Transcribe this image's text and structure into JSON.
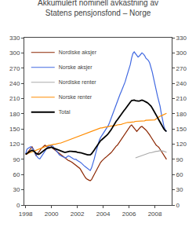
{
  "chart_data": {
    "type": "line",
    "title": "Akkumulert nominell avkastning av",
    "subtitle": "Statens pensjonsfond – Norge",
    "xlim": [
      1997.9,
      2009.3
    ],
    "xticks": [
      1998,
      2000,
      2002,
      2004,
      2006,
      2008
    ],
    "ylim": [
      0,
      330
    ],
    "yticks": [
      0,
      30,
      60,
      90,
      120,
      150,
      180,
      210,
      240,
      270,
      300,
      330
    ],
    "y2lim": [
      0,
      330
    ],
    "y2ticks": [
      0,
      30,
      60,
      90,
      120,
      150,
      180,
      210,
      240,
      270,
      300,
      330
    ],
    "grid": false,
    "legend": "upper left",
    "series": [
      {
        "name": "Nordiske aksjer",
        "color": "#8B2500",
        "x": [
          1998.0,
          1998.1,
          1998.2,
          1998.3,
          1998.4,
          1998.5,
          1998.6,
          1998.7,
          1998.8,
          1998.9,
          1999.0,
          1999.1,
          1999.2,
          1999.3,
          1999.4,
          1999.5,
          1999.6,
          1999.7,
          1999.8,
          1999.9,
          2000.0,
          2000.1,
          2000.2,
          2000.3,
          2000.4,
          2000.5,
          2000.6,
          2000.7,
          2000.8,
          2000.9,
          2001.0,
          2001.1,
          2001.2,
          2001.3,
          2001.4,
          2001.5,
          2001.6,
          2001.7,
          2001.8,
          2001.9,
          2002.0,
          2002.1,
          2002.2,
          2002.3,
          2002.4,
          2002.5,
          2002.6,
          2002.7,
          2002.8,
          2002.9,
          2003.0,
          2003.1,
          2003.2,
          2003.3,
          2003.4,
          2003.5,
          2003.6,
          2003.7,
          2003.8,
          2003.9,
          2004.0,
          2004.1,
          2004.2,
          2004.3,
          2004.4,
          2004.5,
          2004.6,
          2004.7,
          2004.8,
          2004.9,
          2005.0,
          2005.1,
          2005.2,
          2005.3,
          2005.4,
          2005.5,
          2005.6,
          2005.7,
          2005.8,
          2005.9,
          2006.0,
          2006.1,
          2006.2,
          2006.3,
          2006.4,
          2006.5,
          2006.6,
          2006.7,
          2006.8,
          2006.9,
          2007.0,
          2007.1,
          2007.2,
          2007.3,
          2007.4,
          2007.5,
          2007.6,
          2007.7,
          2007.8,
          2007.9,
          2008.0,
          2008.1,
          2008.2,
          2008.3,
          2008.4,
          2008.5,
          2008.6,
          2008.7,
          2008.8,
          2008.9
        ],
        "values": [
          100,
          100,
          105,
          108,
          112,
          115,
          110,
          105,
          98,
          100,
          103,
          107,
          111,
          114,
          116,
          118,
          116,
          114,
          112,
          113,
          115,
          112,
          110,
          108,
          106,
          104,
          102,
          100,
          97,
          95,
          94,
          92,
          90,
          88,
          87,
          86,
          84,
          82,
          80,
          78,
          76,
          74,
          72,
          68,
          63,
          58,
          55,
          52,
          50,
          49,
          48,
          50,
          55,
          60,
          65,
          70,
          75,
          80,
          84,
          87,
          90,
          92,
          94,
          96,
          98,
          100,
          103,
          106,
          110,
          113,
          116,
          118,
          122,
          126,
          130,
          134,
          138,
          142,
          146,
          150,
          153,
          156,
          158,
          155,
          152,
          148,
          145,
          148,
          151,
          154,
          155,
          153,
          150,
          148,
          145,
          142,
          138,
          134,
          130,
          125,
          120,
          118,
          116,
          114,
          110,
          106,
          102,
          98,
          94,
          90
        ]
      },
      {
        "name": "Norske aksjer",
        "color": "#4169E1",
        "x": [
          1998.0,
          1998.1,
          1998.2,
          1998.3,
          1998.4,
          1998.5,
          1998.6,
          1998.7,
          1998.8,
          1998.9,
          1999.0,
          1999.1,
          1999.2,
          1999.3,
          1999.4,
          1999.5,
          1999.6,
          1999.7,
          1999.8,
          1999.9,
          2000.0,
          2000.1,
          2000.2,
          2000.3,
          2000.4,
          2000.5,
          2000.6,
          2000.7,
          2000.8,
          2000.9,
          2001.0,
          2001.1,
          2001.2,
          2001.3,
          2001.4,
          2001.5,
          2001.6,
          2001.7,
          2001.8,
          2001.9,
          2002.0,
          2002.1,
          2002.2,
          2002.3,
          2002.4,
          2002.5,
          2002.6,
          2002.7,
          2002.8,
          2002.9,
          2003.0,
          2003.1,
          2003.2,
          2003.3,
          2003.4,
          2003.5,
          2003.6,
          2003.7,
          2003.8,
          2003.9,
          2004.0,
          2004.1,
          2004.2,
          2004.3,
          2004.4,
          2004.5,
          2004.6,
          2004.7,
          2004.8,
          2004.9,
          2005.0,
          2005.1,
          2005.2,
          2005.3,
          2005.4,
          2005.5,
          2005.6,
          2005.7,
          2005.8,
          2005.9,
          2006.0,
          2006.1,
          2006.2,
          2006.3,
          2006.4,
          2006.5,
          2006.6,
          2006.7,
          2006.8,
          2006.9,
          2007.0,
          2007.1,
          2007.2,
          2007.3,
          2007.4,
          2007.5,
          2007.6,
          2007.7,
          2007.8,
          2007.9,
          2008.0,
          2008.1,
          2008.2,
          2008.3,
          2008.4,
          2008.5,
          2008.6,
          2008.7,
          2008.8,
          2008.9
        ],
        "values": [
          100,
          110,
          112,
          114,
          115,
          113,
          110,
          105,
          98,
          95,
          92,
          91,
          95,
          100,
          104,
          108,
          111,
          114,
          116,
          117,
          118,
          116,
          113,
          110,
          107,
          103,
          99,
          97,
          96,
          95,
          94,
          93,
          95,
          97,
          96,
          94,
          92,
          91,
          90,
          90,
          88,
          87,
          85,
          83,
          80,
          78,
          76,
          74,
          72,
          70,
          68,
          73,
          80,
          90,
          100,
          110,
          120,
          128,
          133,
          137,
          140,
          143,
          148,
          152,
          157,
          163,
          170,
          177,
          185,
          193,
          200,
          205,
          212,
          218,
          224,
          230,
          237,
          243,
          252,
          260,
          268,
          277,
          290,
          299,
          302,
          298,
          295,
          292,
          294,
          297,
          300,
          298,
          295,
          290,
          288,
          285,
          280,
          272,
          262,
          250,
          237,
          225,
          215,
          205,
          195,
          180,
          165,
          155,
          148,
          145
        ]
      },
      {
        "name": "Nordiske renter",
        "color": "#AAAAAA",
        "x": [
          2006.5,
          2006.6,
          2006.7,
          2006.8,
          2006.9,
          2007.0,
          2007.1,
          2007.2,
          2007.3,
          2007.4,
          2007.5,
          2007.6,
          2007.7,
          2007.8,
          2007.9,
          2008.0,
          2008.1,
          2008.2,
          2008.3,
          2008.4,
          2008.5,
          2008.6,
          2008.7,
          2008.8,
          2008.9
        ],
        "values": [
          93,
          94,
          95,
          96,
          97,
          98,
          99,
          100,
          101,
          101,
          102,
          103,
          103,
          104,
          104,
          105,
          106,
          106,
          107,
          107,
          107,
          107,
          106,
          105,
          104
        ]
      },
      {
        "name": "Norske renter",
        "color": "#FF8C00",
        "x": [
          1998.0,
          1998.1,
          1998.2,
          1998.3,
          1998.4,
          1998.5,
          1998.6,
          1998.7,
          1998.8,
          1998.9,
          1999.0,
          1999.1,
          1999.2,
          1999.3,
          1999.4,
          1999.5,
          1999.6,
          1999.7,
          1999.8,
          1999.9,
          2000.0,
          2000.1,
          2000.2,
          2000.3,
          2000.4,
          2000.5,
          2000.6,
          2000.7,
          2000.8,
          2000.9,
          2001.0,
          2001.1,
          2001.2,
          2001.3,
          2001.4,
          2001.5,
          2001.6,
          2001.7,
          2001.8,
          2001.9,
          2002.0,
          2002.1,
          2002.2,
          2002.3,
          2002.4,
          2002.5,
          2002.6,
          2002.7,
          2002.8,
          2002.9,
          2003.0,
          2003.1,
          2003.2,
          2003.3,
          2003.4,
          2003.5,
          2003.6,
          2003.7,
          2003.8,
          2003.9,
          2004.0,
          2004.1,
          2004.2,
          2004.3,
          2004.4,
          2004.5,
          2004.6,
          2004.7,
          2004.8,
          2004.9,
          2005.0,
          2005.1,
          2005.2,
          2005.3,
          2005.4,
          2005.5,
          2005.6,
          2005.7,
          2005.8,
          2005.9,
          2006.0,
          2006.1,
          2006.2,
          2006.3,
          2006.4,
          2006.5,
          2006.6,
          2006.7,
          2006.8,
          2006.9,
          2007.0,
          2007.1,
          2007.2,
          2007.3,
          2007.4,
          2007.5,
          2007.6,
          2007.7,
          2007.8,
          2007.9,
          2008.0,
          2008.1,
          2008.2,
          2008.3,
          2008.4,
          2008.5,
          2008.6,
          2008.7,
          2008.8,
          2008.9
        ],
        "values": [
          100,
          101,
          102,
          103,
          104,
          106,
          107,
          108,
          109,
          110,
          111,
          112,
          113,
          114,
          115,
          116,
          117,
          117,
          118,
          118,
          119,
          119,
          120,
          120,
          121,
          121,
          122,
          122,
          123,
          124,
          125,
          126,
          127,
          128,
          129,
          130,
          131,
          132,
          133,
          134,
          135,
          136,
          137,
          138,
          139,
          140,
          141,
          142,
          143,
          144,
          145,
          146,
          147,
          148,
          149,
          150,
          151,
          151,
          152,
          152,
          153,
          153,
          154,
          154,
          155,
          155,
          156,
          156,
          156,
          157,
          157,
          158,
          158,
          159,
          159,
          160,
          161,
          161,
          162,
          163,
          163,
          163,
          164,
          164,
          164,
          165,
          165,
          165,
          165,
          166,
          166,
          166,
          166,
          167,
          167,
          167,
          167,
          168,
          168,
          168,
          168,
          170,
          172,
          174,
          175,
          176,
          177,
          178,
          180,
          181
        ]
      },
      {
        "name": "Total",
        "color": "#000000",
        "x": [
          1998.0,
          1998.1,
          1998.2,
          1998.3,
          1998.4,
          1998.5,
          1998.6,
          1998.7,
          1998.8,
          1998.9,
          1999.0,
          1999.1,
          1999.2,
          1999.3,
          1999.4,
          1999.5,
          1999.6,
          1999.7,
          1999.8,
          1999.9,
          2000.0,
          2000.1,
          2000.2,
          2000.3,
          2000.4,
          2000.5,
          2000.6,
          2000.7,
          2000.8,
          2000.9,
          2001.0,
          2001.1,
          2001.2,
          2001.3,
          2001.4,
          2001.5,
          2001.6,
          2001.7,
          2001.8,
          2001.9,
          2002.0,
          2002.1,
          2002.2,
          2002.3,
          2002.4,
          2002.5,
          2002.6,
          2002.7,
          2002.8,
          2002.9,
          2003.0,
          2003.1,
          2003.2,
          2003.3,
          2003.4,
          2003.5,
          2003.6,
          2003.7,
          2003.8,
          2003.9,
          2004.0,
          2004.1,
          2004.2,
          2004.3,
          2004.4,
          2004.5,
          2004.6,
          2004.7,
          2004.8,
          2004.9,
          2005.0,
          2005.1,
          2005.2,
          2005.3,
          2005.4,
          2005.5,
          2005.6,
          2005.7,
          2005.8,
          2005.9,
          2006.0,
          2006.1,
          2006.2,
          2006.3,
          2006.4,
          2006.5,
          2006.6,
          2006.7,
          2006.8,
          2006.9,
          2007.0,
          2007.1,
          2007.2,
          2007.3,
          2007.4,
          2007.5,
          2007.6,
          2007.7,
          2007.8,
          2007.9,
          2008.0,
          2008.1,
          2008.2,
          2008.3,
          2008.4,
          2008.5,
          2008.6,
          2008.7,
          2008.8,
          2008.9
        ],
        "values": [
          100,
          102,
          104,
          106,
          107,
          108,
          107,
          105,
          102,
          101,
          100,
          101,
          103,
          106,
          108,
          110,
          111,
          112,
          113,
          113,
          114,
          113,
          112,
          110,
          109,
          108,
          107,
          106,
          105,
          105,
          104,
          104,
          105,
          106,
          106,
          106,
          106,
          105,
          105,
          105,
          104,
          104,
          104,
          103,
          102,
          101,
          100,
          100,
          99,
          99,
          99,
          101,
          104,
          108,
          112,
          116,
          120,
          124,
          127,
          129,
          131,
          133,
          136,
          138,
          141,
          144,
          148,
          152,
          157,
          161,
          165,
          168,
          172,
          175,
          179,
          182,
          186,
          189,
          193,
          197,
          200,
          203,
          206,
          207,
          207,
          206,
          205,
          205,
          205,
          206,
          207,
          206,
          205,
          203,
          202,
          200,
          198,
          195,
          191,
          187,
          183,
          178,
          173,
          168,
          163,
          158,
          153,
          150,
          147,
          145
        ]
      }
    ]
  }
}
